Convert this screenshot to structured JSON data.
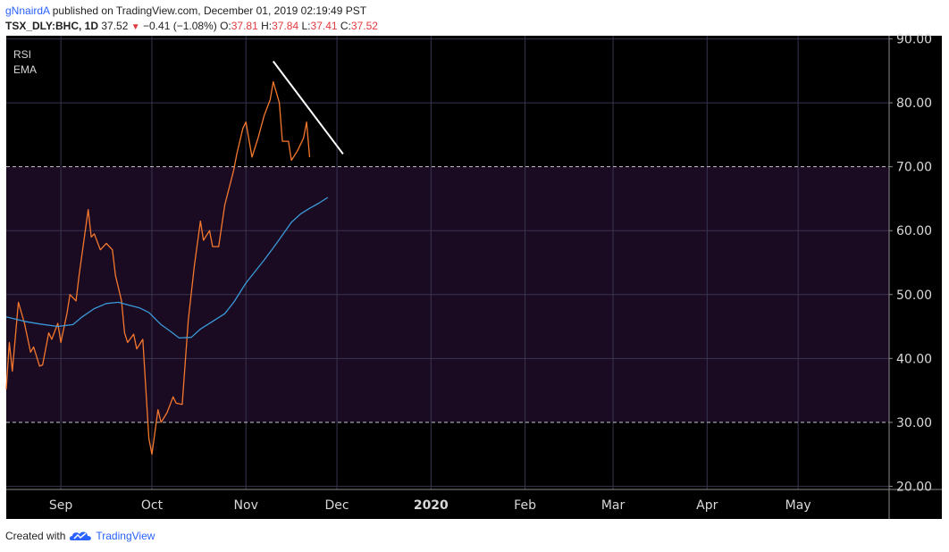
{
  "header": {
    "publisher": "gNnairdA",
    "published_text": "published on TradingView.com, December 01, 2019 02:19:49 PST",
    "symbol": "TSX_DLY:BHC, 1D",
    "last": "37.52",
    "change": "−0.41 (−1.08%)",
    "o_label": "O:",
    "o_value": "37.81",
    "h_label": "H:",
    "h_value": "37.84",
    "l_label": "L:",
    "l_value": "37.41",
    "c_label": "C:",
    "c_value": "37.52"
  },
  "footer": {
    "created_with": "Created with",
    "brand": "TradingView",
    "logo_icon": "tradingview-cloud-icon"
  },
  "colors": {
    "background": "#000000",
    "band_fill": "#1a0a22",
    "rsi_line": "#f5782d",
    "ema_line": "#3a9ad9",
    "trendline": "#ffffff",
    "grid": "#3a3550",
    "down_color": "#e0393e",
    "brand": "#2962ff"
  },
  "chart_data": {
    "type": "line",
    "legend": [
      "RSI",
      "EMA"
    ],
    "legend_placement": "top-left",
    "x_tick_labels": [
      "Sep",
      "Oct",
      "Nov",
      "Dec",
      "2020",
      "Feb",
      "Mar",
      "Apr",
      "May"
    ],
    "x_tick_dates": [
      "2019-09-01",
      "2019-10-01",
      "2019-11-01",
      "2019-12-01",
      "2020-01-01",
      "2020-02-01",
      "2020-03-01",
      "2020-04-01",
      "2020-05-01"
    ],
    "x_range": [
      "2019-08-14",
      "2020-05-31"
    ],
    "y_tick_labels": [
      "20.00",
      "30.00",
      "40.00",
      "50.00",
      "60.00",
      "70.00",
      "80.00",
      "90.00"
    ],
    "y_ticks": [
      20,
      30,
      40,
      50,
      60,
      70,
      80,
      90
    ],
    "ylim": [
      19.5,
      90.5
    ],
    "axis_position": "right",
    "grid": true,
    "band": {
      "low": 30,
      "high": 70
    },
    "series": [
      {
        "name": "RSI",
        "points": [
          [
            "2019-08-14",
            35.2
          ],
          [
            "2019-08-15",
            42.5
          ],
          [
            "2019-08-16",
            38.0
          ],
          [
            "2019-08-18",
            48.8
          ],
          [
            "2019-08-20",
            45.5
          ],
          [
            "2019-08-22",
            41.0
          ],
          [
            "2019-08-23",
            41.8
          ],
          [
            "2019-08-25",
            38.8
          ],
          [
            "2019-08-26",
            39.0
          ],
          [
            "2019-08-28",
            44.0
          ],
          [
            "2019-08-29",
            43.0
          ],
          [
            "2019-08-31",
            45.5
          ],
          [
            "2019-09-01",
            42.5
          ],
          [
            "2019-09-03",
            47.0
          ],
          [
            "2019-09-04",
            50.0
          ],
          [
            "2019-09-06",
            49.0
          ],
          [
            "2019-09-07",
            53.0
          ],
          [
            "2019-09-10",
            63.3
          ],
          [
            "2019-09-11",
            59.0
          ],
          [
            "2019-09-12",
            59.5
          ],
          [
            "2019-09-14",
            57.0
          ],
          [
            "2019-09-16",
            58.0
          ],
          [
            "2019-09-18",
            57.0
          ],
          [
            "2019-09-19",
            53.0
          ],
          [
            "2019-09-21",
            49.0
          ],
          [
            "2019-09-22",
            44.0
          ],
          [
            "2019-09-23",
            42.5
          ],
          [
            "2019-09-25",
            43.8
          ],
          [
            "2019-09-26",
            41.5
          ],
          [
            "2019-09-28",
            43.0
          ],
          [
            "2019-09-30",
            27.5
          ],
          [
            "2019-10-01",
            25.0
          ],
          [
            "2019-10-03",
            32.0
          ],
          [
            "2019-10-04",
            30.0
          ],
          [
            "2019-10-06",
            31.5
          ],
          [
            "2019-10-08",
            34.0
          ],
          [
            "2019-10-09",
            33.0
          ],
          [
            "2019-10-11",
            32.8
          ],
          [
            "2019-10-13",
            46.0
          ],
          [
            "2019-10-15",
            54.5
          ],
          [
            "2019-10-17",
            61.5
          ],
          [
            "2019-10-18",
            58.5
          ],
          [
            "2019-10-20",
            60.0
          ],
          [
            "2019-10-21",
            57.5
          ],
          [
            "2019-10-23",
            57.5
          ],
          [
            "2019-10-25",
            64.0
          ],
          [
            "2019-10-28",
            69.5
          ],
          [
            "2019-10-29",
            72.0
          ],
          [
            "2019-10-31",
            76.0
          ],
          [
            "2019-11-01",
            77.0
          ],
          [
            "2019-11-03",
            71.5
          ],
          [
            "2019-11-05",
            74.5
          ],
          [
            "2019-11-07",
            78.0
          ],
          [
            "2019-11-09",
            80.5
          ],
          [
            "2019-11-10",
            83.3
          ],
          [
            "2019-11-12",
            80.0
          ],
          [
            "2019-11-13",
            74.0
          ],
          [
            "2019-11-15",
            74.0
          ],
          [
            "2019-11-16",
            71.0
          ],
          [
            "2019-11-18",
            72.5
          ],
          [
            "2019-11-20",
            74.5
          ],
          [
            "2019-11-21",
            77.0
          ],
          [
            "2019-11-22",
            71.5
          ]
        ]
      },
      {
        "name": "EMA",
        "points": [
          [
            "2019-08-14",
            46.5
          ],
          [
            "2019-08-20",
            45.8
          ],
          [
            "2019-08-25",
            45.4
          ],
          [
            "2019-08-31",
            45.0
          ],
          [
            "2019-09-05",
            45.3
          ],
          [
            "2019-09-08",
            46.5
          ],
          [
            "2019-09-12",
            47.8
          ],
          [
            "2019-09-16",
            48.6
          ],
          [
            "2019-09-20",
            48.8
          ],
          [
            "2019-09-23",
            48.4
          ],
          [
            "2019-09-27",
            47.9
          ],
          [
            "2019-09-30",
            47.2
          ],
          [
            "2019-10-04",
            45.3
          ],
          [
            "2019-10-07",
            44.3
          ],
          [
            "2019-10-10",
            43.2
          ],
          [
            "2019-10-14",
            43.3
          ],
          [
            "2019-10-17",
            44.6
          ],
          [
            "2019-10-21",
            45.8
          ],
          [
            "2019-10-25",
            47.0
          ],
          [
            "2019-10-28",
            48.8
          ],
          [
            "2019-11-01",
            51.8
          ],
          [
            "2019-11-04",
            53.6
          ],
          [
            "2019-11-07",
            55.4
          ],
          [
            "2019-11-10",
            57.3
          ],
          [
            "2019-11-13",
            59.3
          ],
          [
            "2019-11-16",
            61.3
          ],
          [
            "2019-11-19",
            62.6
          ],
          [
            "2019-11-22",
            63.5
          ],
          [
            "2019-11-25",
            64.3
          ],
          [
            "2019-11-28",
            65.2
          ]
        ]
      }
    ],
    "annotations": [
      {
        "type": "trendline",
        "from": [
          "2019-11-10",
          86.5
        ],
        "to": [
          "2019-12-03",
          72.0
        ]
      }
    ]
  }
}
